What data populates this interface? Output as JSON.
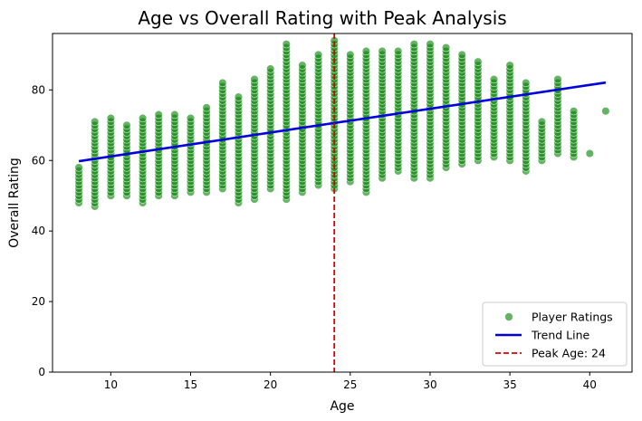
{
  "chart_data": {
    "type": "scatter",
    "title": "Age vs Overall Rating with Peak Analysis",
    "xlabel": "Age",
    "ylabel": "Overall Rating",
    "xlim": [
      6.35,
      42.65
    ],
    "ylim": [
      0,
      96
    ],
    "xticks": [
      10,
      15,
      20,
      25,
      30,
      35,
      40
    ],
    "yticks": [
      0,
      20,
      40,
      60,
      80
    ],
    "grid": false,
    "legend_position": "bottom-right",
    "colors": {
      "points": "#008000",
      "trend": "#0000dd",
      "peak": "#dd0000"
    },
    "series": [
      {
        "name": "Player Ratings",
        "kind": "scatter",
        "ranges": [
          {
            "age": 8,
            "min": 48,
            "max": 58
          },
          {
            "age": 9,
            "min": 47,
            "max": 71
          },
          {
            "age": 10,
            "min": 50,
            "max": 72
          },
          {
            "age": 11,
            "min": 50,
            "max": 70
          },
          {
            "age": 12,
            "min": 48,
            "max": 72
          },
          {
            "age": 13,
            "min": 50,
            "max": 73
          },
          {
            "age": 14,
            "min": 50,
            "max": 73
          },
          {
            "age": 15,
            "min": 51,
            "max": 72
          },
          {
            "age": 16,
            "min": 51,
            "max": 75
          },
          {
            "age": 17,
            "min": 52,
            "max": 82
          },
          {
            "age": 18,
            "min": 48,
            "max": 78
          },
          {
            "age": 19,
            "min": 49,
            "max": 83
          },
          {
            "age": 20,
            "min": 52,
            "max": 86
          },
          {
            "age": 21,
            "min": 49,
            "max": 93
          },
          {
            "age": 22,
            "min": 51,
            "max": 87
          },
          {
            "age": 23,
            "min": 53,
            "max": 90
          },
          {
            "age": 24,
            "min": 52,
            "max": 94
          },
          {
            "age": 25,
            "min": 54,
            "max": 90
          },
          {
            "age": 26,
            "min": 51,
            "max": 91
          },
          {
            "age": 27,
            "min": 55,
            "max": 91
          },
          {
            "age": 28,
            "min": 57,
            "max": 91
          },
          {
            "age": 29,
            "min": 55,
            "max": 93
          },
          {
            "age": 30,
            "min": 55,
            "max": 93
          },
          {
            "age": 31,
            "min": 58,
            "max": 92
          },
          {
            "age": 32,
            "min": 59,
            "max": 90
          },
          {
            "age": 33,
            "min": 60,
            "max": 88
          },
          {
            "age": 34,
            "min": 61,
            "max": 83
          },
          {
            "age": 35,
            "min": 60,
            "max": 87
          },
          {
            "age": 36,
            "min": 57,
            "max": 82
          },
          {
            "age": 37,
            "min": 60,
            "max": 71
          },
          {
            "age": 38,
            "min": 62,
            "max": 83
          },
          {
            "age": 39,
            "min": 61,
            "max": 74
          },
          {
            "age": 40,
            "min": 62,
            "max": 62
          },
          {
            "age": 41,
            "min": 74,
            "max": 74
          }
        ]
      },
      {
        "name": "Trend Line",
        "kind": "line",
        "x": [
          8,
          41
        ],
        "y": [
          59.8,
          82.1
        ]
      },
      {
        "name": "Peak Age: 24",
        "kind": "vline",
        "x": 24
      }
    ]
  }
}
